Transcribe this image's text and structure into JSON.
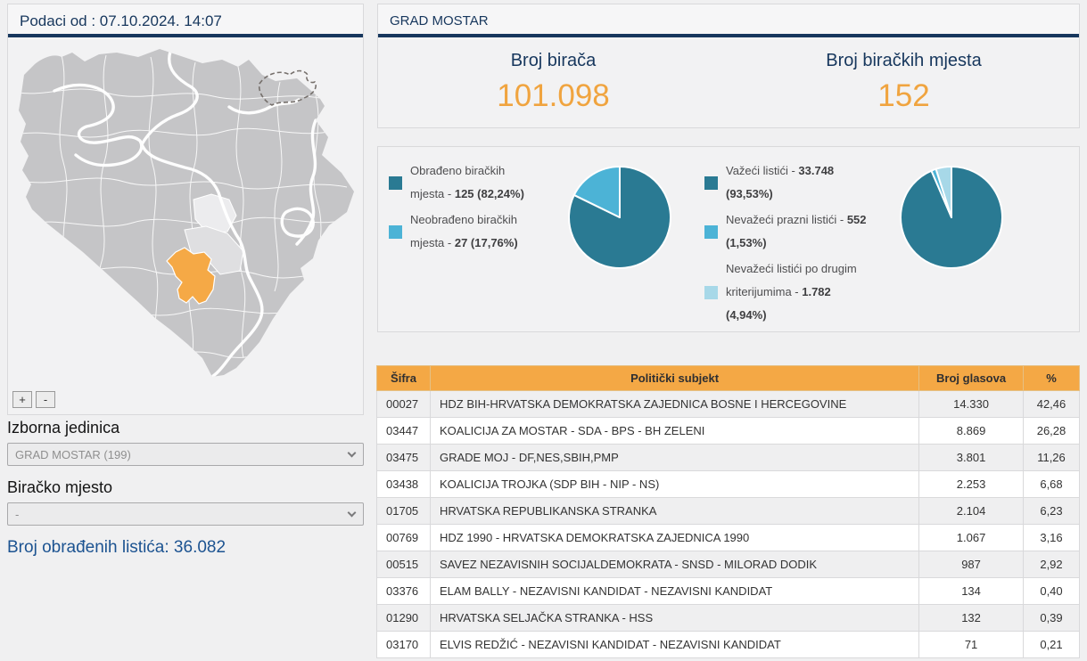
{
  "left_panel": {
    "header": "Podaci od : 07.10.2024. 14:07",
    "map": {
      "zoom_in_label": "+",
      "zoom_out_label": "-",
      "highlight_color": "#f5a946"
    },
    "izborna_jedinica_label": "Izborna jedinica",
    "izborna_jedinica_value": "GRAD MOSTAR (199)",
    "biracko_mjesto_label": "Biračko mjesto",
    "biracko_mjesto_value": "-",
    "processed_ballots": "Broj obrađenih listića: 36.082"
  },
  "right_panel": {
    "header": "GRAD MOSTAR",
    "stats": {
      "voters_label": "Broj birača",
      "voters_value": "101.098",
      "stations_label": "Broj biračkih mjesta",
      "stations_value": "152"
    }
  },
  "chart_data": [
    {
      "type": "pie",
      "legend_position": "left",
      "slices": [
        {
          "label": "Obrađeno biračkih mjesta -",
          "value": 125,
          "pct": 82.24,
          "value_display": "125 (82,24%)",
          "color": "#2a7a93"
        },
        {
          "label": "Neobrađeno biračkih mjesta -",
          "value": 27,
          "pct": 17.76,
          "value_display": "27 (17,76%)",
          "color": "#4cb3d6"
        }
      ]
    },
    {
      "type": "pie",
      "legend_position": "left",
      "slices": [
        {
          "label": "Važeći listići -",
          "value": 33748,
          "pct": 93.53,
          "value_display": "33.748 (93,53%)",
          "color": "#2a7a93"
        },
        {
          "label": "Nevažeći prazni listići -",
          "value": 552,
          "pct": 1.53,
          "value_display": "552 (1,53%)",
          "color": "#4cb3d6"
        },
        {
          "label": "Nevažeći listići po drugim kriterijumima -",
          "value": 1782,
          "pct": 4.94,
          "value_display": "1.782 (4,94%)",
          "color": "#a7d8e8"
        }
      ]
    }
  ],
  "table": {
    "headers": [
      "Šifra",
      "Politički subjekt",
      "Broj glasova",
      "%"
    ],
    "rows": [
      [
        "00027",
        "HDZ BIH-HRVATSKA DEMOKRATSKA ZAJEDNICA BOSNE I HERCEGOVINE",
        "14.330",
        "42,46"
      ],
      [
        "03447",
        "KOALICIJA ZA MOSTAR - SDA - BPS - BH ZELENI",
        "8.869",
        "26,28"
      ],
      [
        "03475",
        "GRADE MOJ - DF,NES,SBIH,PMP",
        "3.801",
        "11,26"
      ],
      [
        "03438",
        "KOALICIJA TROJKA (SDP BIH - NIP - NS)",
        "2.253",
        "6,68"
      ],
      [
        "01705",
        "HRVATSKA REPUBLIKANSKA STRANKA",
        "2.104",
        "6,23"
      ],
      [
        "00769",
        "HDZ 1990 - HRVATSKA DEMOKRATSKA ZAJEDNICA 1990",
        "1.067",
        "3,16"
      ],
      [
        "00515",
        "SAVEZ NEZAVISNIH SOCIJALDEMOKRATA - SNSD - MILORAD DODIK",
        "987",
        "2,92"
      ],
      [
        "03376",
        "ELAM BALLY - NEZAVISNI KANDIDAT - NEZAVISNI KANDIDAT",
        "134",
        "0,40"
      ],
      [
        "01290",
        "HRVATSKA SELJAČKA STRANKA - HSS",
        "132",
        "0,39"
      ],
      [
        "03170",
        "ELVIS REDŽIĆ - NEZAVISNI KANDIDAT - NEZAVISNI KANDIDAT",
        "71",
        "0,21"
      ]
    ]
  },
  "colors": {
    "navy": "#17375d",
    "stat_value_orange": "#f0a43f",
    "table_header_bg": "#f4a845",
    "pie_palette": [
      "#2a7a93",
      "#4cb3d6",
      "#a7d8e8"
    ],
    "map_gray": "#c5c5c7",
    "map_highlight": "#f5a946"
  }
}
